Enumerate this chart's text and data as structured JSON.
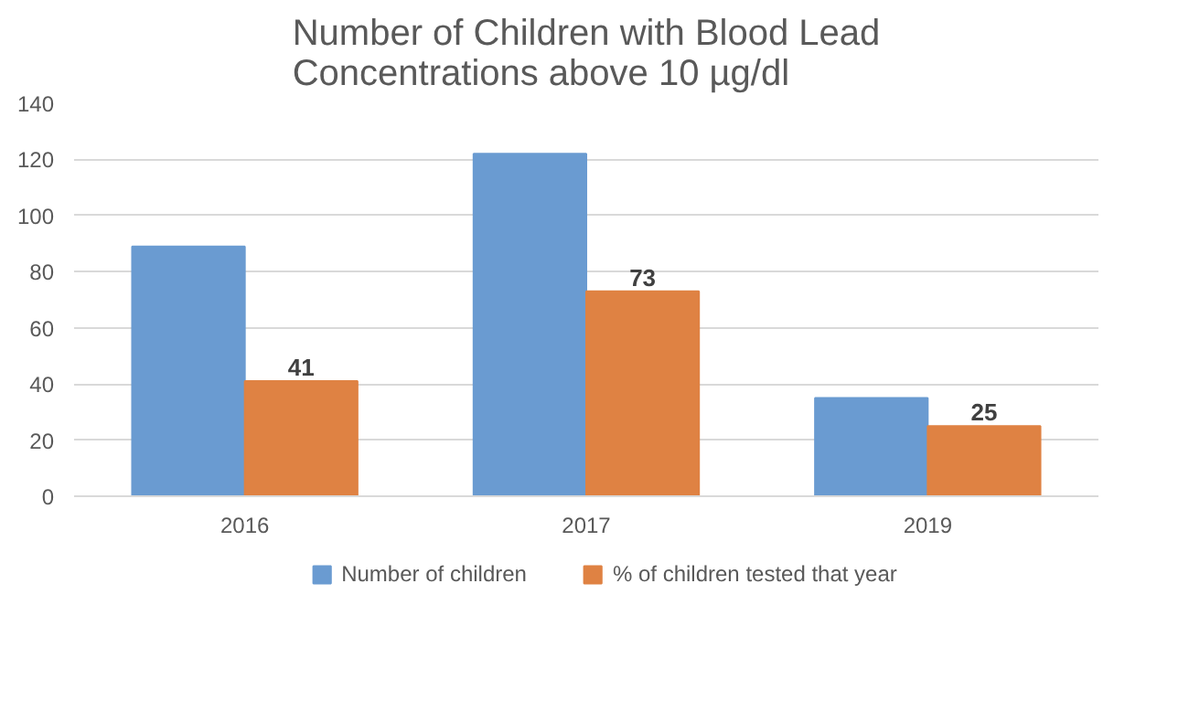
{
  "chart_data": {
    "type": "bar",
    "title": "Number of Children with Blood Lead\nConcentrations above 10 µg/dl",
    "categories": [
      "2016",
      "2017",
      "2019"
    ],
    "series": [
      {
        "name": "Number of children",
        "color": "#6a9bd1",
        "values": [
          89,
          122,
          35
        ]
      },
      {
        "name": "% of children tested that year",
        "color": "#df8243",
        "values": [
          41,
          73,
          25
        ],
        "value_labels": [
          "41",
          "73",
          "25"
        ]
      }
    ],
    "ylim": [
      0,
      140
    ],
    "yticks": [
      0,
      20,
      40,
      60,
      80,
      100,
      120,
      140
    ],
    "grid": "y",
    "legend": "bottom"
  }
}
